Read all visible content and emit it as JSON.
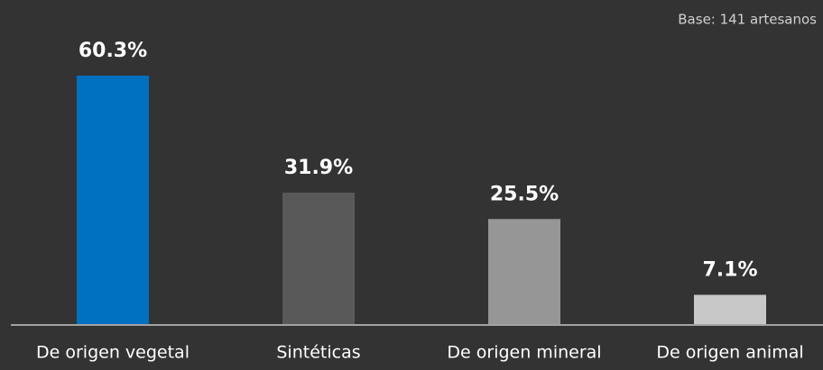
{
  "chart_data": {
    "type": "bar",
    "note": "Base: 141 artesanos",
    "categories": [
      "De origen vegetal",
      "Sintéticas",
      "De origen mineral",
      "De origen animal"
    ],
    "values": [
      60.3,
      31.9,
      25.5,
      7.1
    ],
    "value_labels": [
      "60.3%",
      "31.9%",
      "25.5%",
      "7.1%"
    ],
    "colors": [
      "#0070c0",
      "#595959",
      "#969696",
      "#c8c8c8"
    ]
  }
}
